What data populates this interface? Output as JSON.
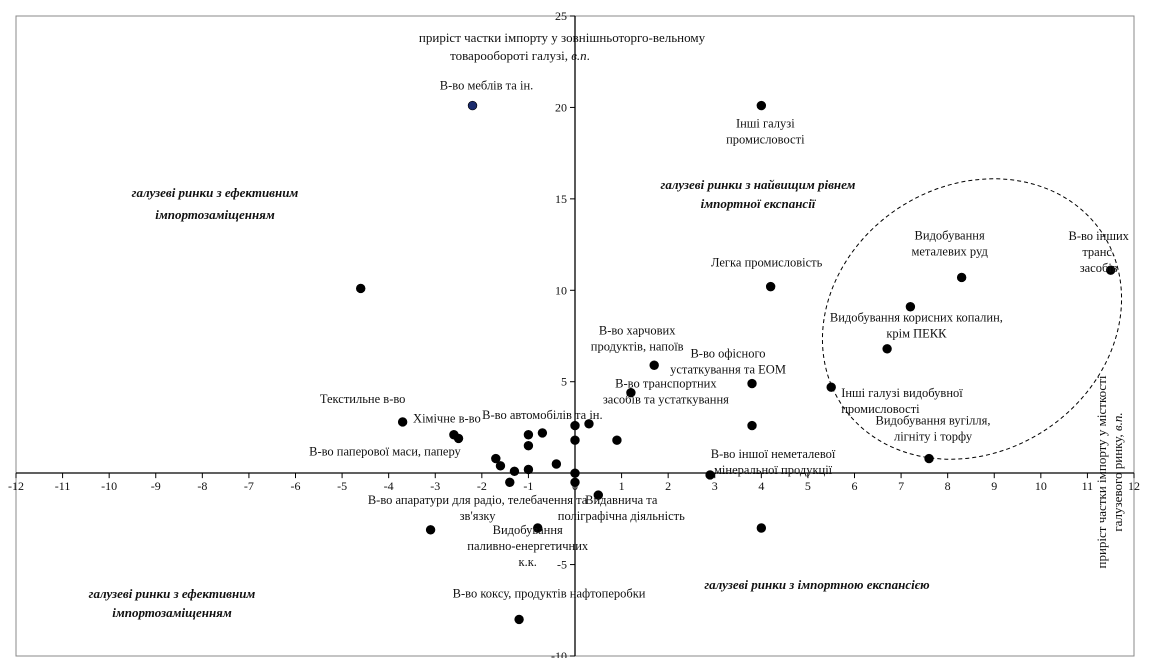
{
  "chart_data": {
    "type": "scatter",
    "xlim": [
      -12,
      12
    ],
    "ylim": [
      -10,
      25
    ],
    "xticks": [
      -12,
      -11,
      -10,
      -9,
      -8,
      -7,
      -6,
      -5,
      -4,
      -3,
      -2,
      -1,
      0,
      1,
      2,
      3,
      4,
      5,
      6,
      7,
      8,
      9,
      10,
      11,
      12
    ],
    "yticks": [
      -10,
      -5,
      0,
      5,
      10,
      15,
      20,
      25
    ],
    "grid": false,
    "legend": "none",
    "marker_color": "#000000",
    "highlight_color": "#1a2a6c",
    "ylabel": "приріст частки імпорту у зовнішньоторго-вельному товарообороті галузі, в.п.",
    "xlabel": "приріст частки імпорту у місткості галузевого ринку, в.п.",
    "quadrant_labels": [
      "галузеві ринки з ефективним імпортозаміщенням",
      "галузеві ринки з найвищим рівнем імпортної експансії",
      "галузеві ринки з ефективним імпортозаміщенням",
      "галузеві ринки з імпортною експансією"
    ],
    "points": [
      {
        "x": -2.2,
        "y": 20.1,
        "label": "В-во меблів та ін.",
        "highlight": true
      },
      {
        "x": 4.0,
        "y": 20.1,
        "label": "Інші галузі промисловості"
      },
      {
        "x": -4.6,
        "y": 10.1,
        "label": ""
      },
      {
        "x": 4.2,
        "y": 10.2,
        "label": "Легка промисловість"
      },
      {
        "x": 8.3,
        "y": 10.7,
        "label": "Видобування металевих руд"
      },
      {
        "x": 11.5,
        "y": 11.1,
        "label": "В-во інших транс. засобів"
      },
      {
        "x": 7.2,
        "y": 9.1,
        "label": "Видобування корисних копалин, крім ПЕКК"
      },
      {
        "x": 6.7,
        "y": 6.8,
        "label": ""
      },
      {
        "x": 5.5,
        "y": 4.7,
        "label": "Інші галузі видобувної промисловості"
      },
      {
        "x": 3.8,
        "y": 4.9,
        "label": "В-во офісного устаткування та ЕОМ"
      },
      {
        "x": 1.7,
        "y": 5.9,
        "label": "В-во харчових продуктів, напоїв"
      },
      {
        "x": 1.2,
        "y": 4.4,
        "label": "В-во транспортних засобів та устаткування"
      },
      {
        "x": 7.6,
        "y": 0.8,
        "label": "Видобування вугілля, лігніту і торфу"
      },
      {
        "x": 3.8,
        "y": 2.6,
        "label": ""
      },
      {
        "x": 2.9,
        "y": -0.1,
        "label": "В-во іншої неметалевої мінеральної продукції"
      },
      {
        "x": 4.0,
        "y": -3.0,
        "label": ""
      },
      {
        "x": 0.5,
        "y": -1.2,
        "label": "Видавнича та поліграфічна діяльність"
      },
      {
        "x": -3.7,
        "y": 2.8,
        "label": "Текстильне в-во"
      },
      {
        "x": -2.6,
        "y": 2.1,
        "label": "Хімічне в-во"
      },
      {
        "x": -2.5,
        "y": 1.9,
        "label": ""
      },
      {
        "x": -0.7,
        "y": 2.2,
        "label": "В-во автомобілів та ін."
      },
      {
        "x": 0.3,
        "y": 2.7,
        "label": ""
      },
      {
        "x": 0.0,
        "y": 2.6,
        "label": ""
      },
      {
        "x": -1.0,
        "y": 2.1,
        "label": ""
      },
      {
        "x": -1.0,
        "y": 1.5,
        "label": ""
      },
      {
        "x": 0.0,
        "y": 1.8,
        "label": ""
      },
      {
        "x": 0.9,
        "y": 1.8,
        "label": ""
      },
      {
        "x": -1.7,
        "y": 0.8,
        "label": "В-во паперової маси, паперу"
      },
      {
        "x": -1.6,
        "y": 0.4,
        "label": ""
      },
      {
        "x": -1.3,
        "y": 0.1,
        "label": ""
      },
      {
        "x": -0.4,
        "y": 0.5,
        "label": ""
      },
      {
        "x": -1.0,
        "y": 0.2,
        "label": ""
      },
      {
        "x": 0.0,
        "y": 0.0,
        "label": ""
      },
      {
        "x": -1.4,
        "y": -0.5,
        "label": ""
      },
      {
        "x": 0.0,
        "y": -0.5,
        "label": ""
      },
      {
        "x": -3.1,
        "y": -3.1,
        "label": "В-во апаратури для радіо, телебачення та зв'язку"
      },
      {
        "x": -0.8,
        "y": -3.0,
        "label": "Видобування паливно-енергетичних к.к."
      },
      {
        "x": -1.2,
        "y": -8.0,
        "label": "В-во коксу, продуктів нафтоперобки"
      }
    ]
  }
}
